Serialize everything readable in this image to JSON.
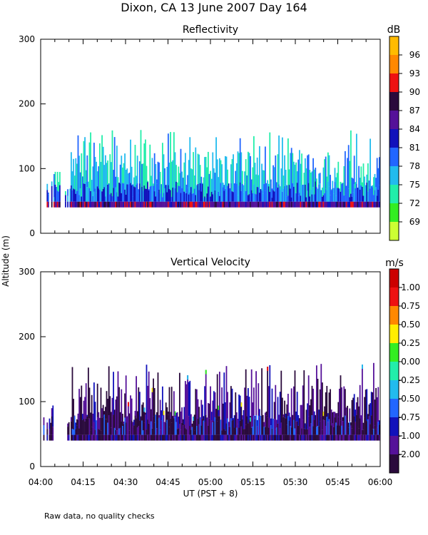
{
  "title": "Dixon, CA 13 June 2007  Day 164",
  "footnote": "Raw data, no quality checks",
  "chart_data": [
    {
      "type": "heatmap",
      "title": "Reflectivity",
      "xlabel": "UT  (PST + 8)",
      "ylabel": "Altitude (m)",
      "x_ticks": [
        "04:00",
        "04:15",
        "04:30",
        "04:45",
        "05:00",
        "05:15",
        "05:30",
        "05:45",
        "06:00"
      ],
      "x_range_minutes": [
        0,
        120
      ],
      "y_ticks": [
        0,
        100,
        200,
        300
      ],
      "ylim": [
        0,
        300
      ],
      "data_start_minute": 0.5,
      "data_bottom_m": 40,
      "colorbar": {
        "unit": "dB",
        "labels": [
          "69",
          "72",
          "75",
          "78",
          "81",
          "84",
          "87",
          "90",
          "93",
          "96"
        ],
        "colors": [
          "#ccff33",
          "#33ee22",
          "#22eeaa",
          "#22bbee",
          "#2266ff",
          "#1111bb",
          "#551199",
          "#2a0a3c",
          "#ee1111",
          "#ff8800",
          "#ffbb00"
        ]
      },
      "echo": {
        "top_typical_m": 120,
        "top_max_m": 160,
        "colors_upper": [
          "#22bbee",
          "#22bbee",
          "#22eeaa",
          "#2266ff",
          "#22eeaa"
        ],
        "colors_lower": [
          "#2266ff",
          "#1111bb",
          "#2266ff",
          "#1111bb",
          "#22bbee"
        ],
        "colors_base": [
          "#551199",
          "#1111bb",
          "#551199",
          "#2a0a3c"
        ],
        "colors_base_hot": [
          "#ee1111",
          "#551199"
        ]
      }
    },
    {
      "type": "heatmap",
      "title": "Vertical Velocity",
      "xlabel": "UT  (PST + 8)",
      "ylabel": "Altitude (m)",
      "x_ticks": [
        "04:00",
        "04:15",
        "04:30",
        "04:45",
        "05:00",
        "05:15",
        "05:30",
        "05:45",
        "06:00"
      ],
      "x_range_minutes": [
        0,
        120
      ],
      "y_ticks": [
        0,
        100,
        200,
        300
      ],
      "ylim": [
        0,
        300
      ],
      "data_start_minute": 0.5,
      "data_bottom_m": 40,
      "colorbar": {
        "unit": "m/s",
        "labels": [
          "-2.00",
          "-1.00",
          "-0.75",
          "-0.50",
          "-0.25",
          "0.00",
          "0.25",
          "0.50",
          "0.75",
          "1.00"
        ],
        "colors": [
          "#2a0a3c",
          "#551199",
          "#1111bb",
          "#2266ff",
          "#22bbee",
          "#22eeaa",
          "#33ee22",
          "#ffee00",
          "#ff8800",
          "#ee1111",
          "#cc0000"
        ]
      },
      "echo": {
        "top_typical_m": 120,
        "top_max_m": 160,
        "colors_upper": [
          "#2a0a3c",
          "#551199",
          "#2a0a3c",
          "#1111bb",
          "#551199"
        ],
        "colors_lower": [
          "#2a0a3c",
          "#551199",
          "#2a0a3c",
          "#2266ff",
          "#2a0a3c"
        ],
        "colors_base": [
          "#2a0a3c",
          "#551199"
        ],
        "colors_base_hot": [
          "#2a0a3c",
          "#1111bb"
        ],
        "sparks": [
          "#22eeaa",
          "#ffee00",
          "#ee1111",
          "#22bbee",
          "#33ee22"
        ]
      }
    }
  ]
}
